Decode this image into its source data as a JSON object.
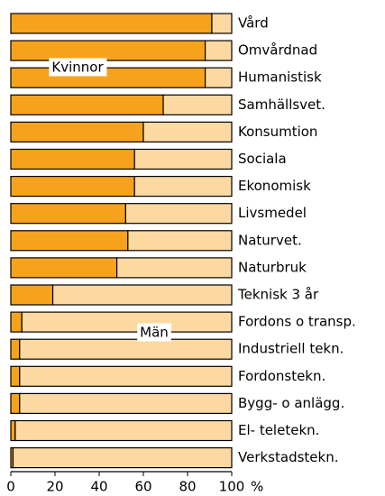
{
  "chart_data": {
    "type": "stacked-barh",
    "categories": [
      "Vård",
      "Omvårdnad",
      "Humanistisk",
      "Samhällsvet.",
      "Konsumtion",
      "Sociala",
      "Ekonomisk",
      "Livsmedel",
      "Naturvet.",
      "Naturbruk",
      "Teknisk 3 år",
      "Fordons o transp.",
      "Industriell tekn.",
      "Fordonstekn.",
      "Bygg- o anlägg.",
      "El- teletekn.",
      "Verkstadstekn."
    ],
    "series": [
      {
        "name": "Kvinnor",
        "color": "#f6a21c",
        "values": [
          91,
          88,
          88,
          69,
          60,
          56,
          56,
          52,
          53,
          48,
          19,
          5,
          4,
          4,
          4,
          2,
          1
        ]
      },
      {
        "name": "Män",
        "color": "#fdd9a2",
        "values": [
          9,
          12,
          12,
          31,
          40,
          44,
          44,
          48,
          47,
          52,
          81,
          95,
          96,
          96,
          96,
          98,
          99
        ]
      }
    ],
    "xlabel": "%",
    "xlim": [
      0,
      100
    ],
    "xticks": [
      0,
      20,
      40,
      60,
      80,
      100
    ]
  }
}
